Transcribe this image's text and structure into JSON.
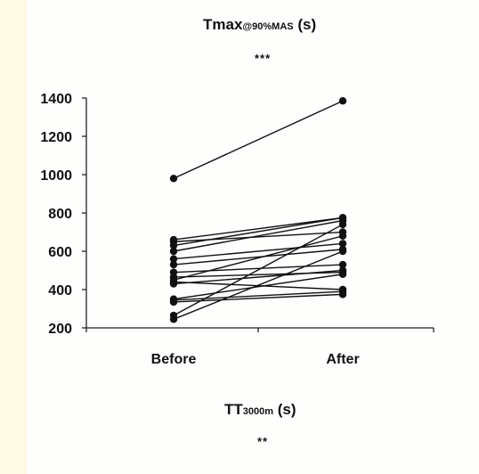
{
  "chart_data": {
    "type": "line",
    "title_main": "Tmax",
    "title_sub": "@90%MAS",
    "title_unit": " (s)",
    "title_sig": "***",
    "xlabel_main": "TT",
    "xlabel_sub": "3000m",
    "xlabel_unit": " (s)",
    "xlabel_sig": "**",
    "categories": [
      "Before",
      "After"
    ],
    "ylim": [
      200,
      1400
    ],
    "yticks": [
      200,
      400,
      600,
      800,
      1000,
      1200,
      1400
    ],
    "grid": false,
    "series": [
      {
        "values": [
          980,
          1385
        ]
      },
      {
        "values": [
          660,
          775
        ]
      },
      {
        "values": [
          650,
          700
        ]
      },
      {
        "values": [
          630,
          775
        ]
      },
      {
        "values": [
          600,
          760
        ]
      },
      {
        "values": [
          560,
          640
        ]
      },
      {
        "values": [
          530,
          610
        ]
      },
      {
        "values": [
          490,
          530
        ]
      },
      {
        "values": [
          465,
          490
        ]
      },
      {
        "values": [
          450,
          680
        ]
      },
      {
        "values": [
          440,
          400
        ]
      },
      {
        "values": [
          430,
          500
        ]
      },
      {
        "values": [
          350,
          480
        ]
      },
      {
        "values": [
          345,
          390
        ]
      },
      {
        "values": [
          335,
          375
        ]
      },
      {
        "values": [
          265,
          740
        ]
      },
      {
        "values": [
          245,
          600
        ]
      }
    ]
  }
}
